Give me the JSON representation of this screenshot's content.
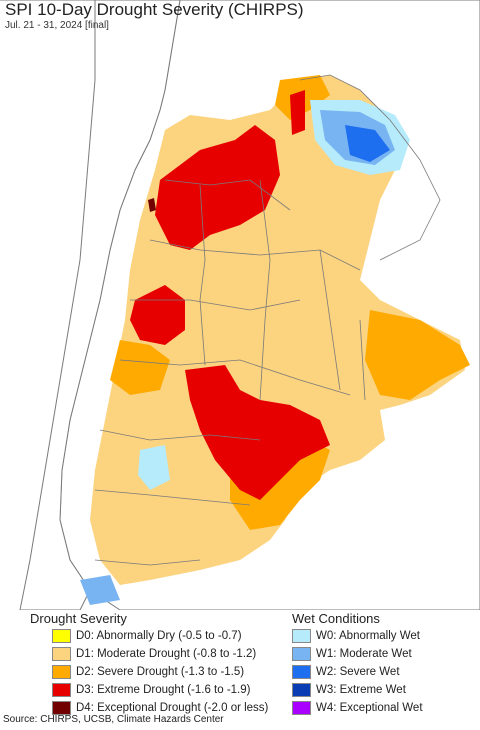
{
  "title": "SPI 10-Day Drought Severity (CHIRPS)",
  "subtitle": "Jul. 21 - 31, 2024 [final]",
  "colors": {
    "ocean": "#ffffff",
    "border": "#7a7a7a",
    "d0": "#ffff00",
    "d1": "#fcd37f",
    "d2": "#ffaa00",
    "d3": "#e60000",
    "d4": "#730000",
    "w0": "#b5ebfa",
    "w1": "#78b4f2",
    "w2": "#1e6ef0",
    "w3": "#0a3cb4",
    "w4": "#aa00ff"
  },
  "legend": {
    "drought": {
      "title": "Drought Severity",
      "items": [
        {
          "label": "D0: Abnormally Dry (-0.5 to -0.7)",
          "color": "#ffff00"
        },
        {
          "label": "D1: Moderate Drought (-0.8 to -1.2)",
          "color": "#fcd37f"
        },
        {
          "label": "D2: Severe Drought (-1.3 to -1.5)",
          "color": "#ffaa00"
        },
        {
          "label": "D3: Extreme Drought (-1.6 to -1.9)",
          "color": "#e60000"
        },
        {
          "label": "D4: Exceptional Drought (-2.0 or less)",
          "color": "#730000"
        }
      ]
    },
    "wet": {
      "title": "Wet Conditions",
      "items": [
        {
          "label": "W0: Abnormally Wet",
          "color": "#b5ebfa"
        },
        {
          "label": "W1: Moderate Wet",
          "color": "#78b4f2"
        },
        {
          "label": "W2: Severe Wet",
          "color": "#1e6ef0"
        },
        {
          "label": "W3: Extreme Wet",
          "color": "#0a3cb4"
        },
        {
          "label": "W4: Exceptional Wet",
          "color": "#aa00ff"
        }
      ]
    }
  },
  "source": "Source: CHIRPS, UCSB, Climate Hazards Center"
}
